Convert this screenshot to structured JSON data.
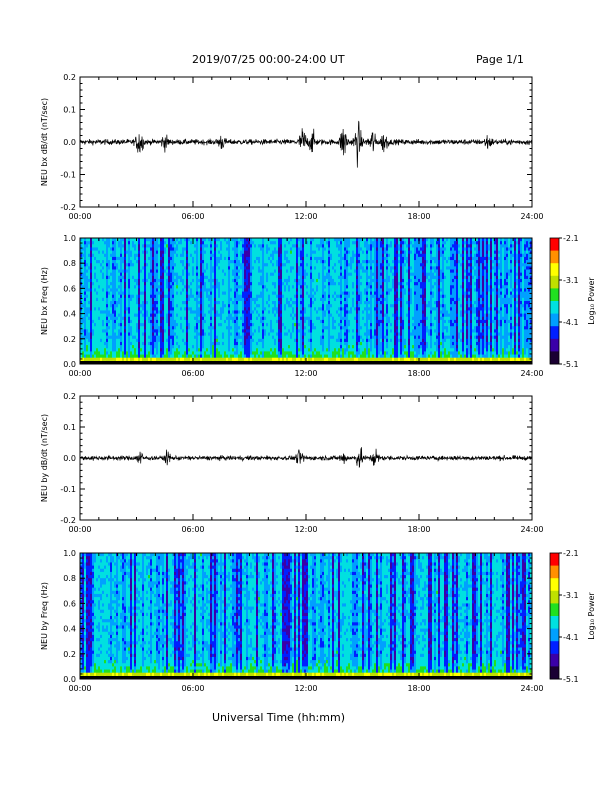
{
  "header": {
    "title": "2019/07/25  00:00-24:00 UT",
    "page": "Page 1/1"
  },
  "colors": {
    "line": "#000000",
    "colormap": [
      "#1a0033",
      "#3a00a8",
      "#0020ff",
      "#00a0ff",
      "#00e0e0",
      "#20e020",
      "#c0e000",
      "#ffff00",
      "#ff9000",
      "#ff0000"
    ]
  },
  "chart_data": [
    {
      "type": "line",
      "ylabel": "NEU bx dB/dt (nT/sec)",
      "ylim": [
        -0.2,
        0.2
      ],
      "yticks": [
        "0.2",
        "0.1",
        "0.0",
        "-0.1",
        "-0.2"
      ],
      "xlim": [
        "00:00",
        "24:00"
      ],
      "xticks": [
        "00:00",
        "06:00",
        "12:00",
        "18:00",
        "24:00"
      ],
      "baseline_noise": 0.008,
      "bursts": [
        {
          "t": "03:10",
          "amp": 0.04
        },
        {
          "t": "04:30",
          "amp": 0.02
        },
        {
          "t": "07:30",
          "amp": 0.02
        },
        {
          "t": "11:50",
          "amp": 0.04
        },
        {
          "t": "12:20",
          "amp": 0.03
        },
        {
          "t": "14:00",
          "amp": 0.05
        },
        {
          "t": "14:45",
          "amp": 0.06
        },
        {
          "t": "15:30",
          "amp": 0.04
        },
        {
          "t": "16:10",
          "amp": 0.03
        },
        {
          "t": "21:40",
          "amp": 0.02
        }
      ]
    },
    {
      "type": "heatmap",
      "ylabel": "NEU bx Freq (Hz)",
      "ylim": [
        0.0,
        1.0
      ],
      "yticks": [
        "1.0",
        "0.8",
        "0.6",
        "0.4",
        "0.2",
        "0.0"
      ],
      "xlim": [
        "00:00",
        "24:00"
      ],
      "xticks": [
        "00:00",
        "06:00",
        "12:00",
        "18:00",
        "24:00"
      ],
      "colorbar": {
        "label": "Log₁₀ Power",
        "range": [
          -5.1,
          -2.1
        ],
        "ticks": [
          "-2.1",
          "-3.1",
          "-4.1",
          "-5.1"
        ]
      }
    },
    {
      "type": "line",
      "ylabel": "NEU by dB/dt (nT/sec)",
      "ylim": [
        -0.2,
        0.2
      ],
      "yticks": [
        "0.2",
        "0.1",
        "0.0",
        "-0.1",
        "-0.2"
      ],
      "xlim": [
        "00:00",
        "24:00"
      ],
      "xticks": [
        "00:00",
        "06:00",
        "12:00",
        "18:00",
        "24:00"
      ],
      "baseline_noise": 0.007,
      "bursts": [
        {
          "t": "03:10",
          "amp": 0.02
        },
        {
          "t": "04:40",
          "amp": 0.015
        },
        {
          "t": "11:40",
          "amp": 0.02
        },
        {
          "t": "14:00",
          "amp": 0.02
        },
        {
          "t": "14:50",
          "amp": 0.03
        },
        {
          "t": "15:40",
          "amp": 0.025
        }
      ]
    },
    {
      "type": "heatmap",
      "ylabel": "NEU by Freq (Hz)",
      "ylim": [
        0.0,
        1.0
      ],
      "yticks": [
        "1.0",
        "0.8",
        "0.6",
        "0.4",
        "0.2",
        "0.0"
      ],
      "xlim": [
        "00:00",
        "24:00"
      ],
      "xticks": [
        "00:00",
        "06:00",
        "12:00",
        "18:00",
        "24:00"
      ],
      "colorbar": {
        "label": "Log₁₀ Power",
        "range": [
          -5.1,
          -2.1
        ],
        "ticks": [
          "-2.1",
          "-3.1",
          "-4.1",
          "-5.1"
        ]
      }
    }
  ],
  "xlabel": "Universal Time (hh:mm)"
}
